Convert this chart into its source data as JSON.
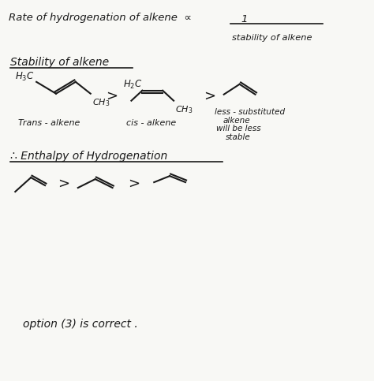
{
  "bg_color": "#f8f8f5",
  "text_color": "#1a1a1a",
  "stability_heading": "Stability of alkene",
  "trans_label": "Trans - alkene",
  "cis_label": "cis - alkene",
  "enthalpy_heading": "∴ Enthalpy of Hydrogenation",
  "option_text": "option (3) is correct ."
}
